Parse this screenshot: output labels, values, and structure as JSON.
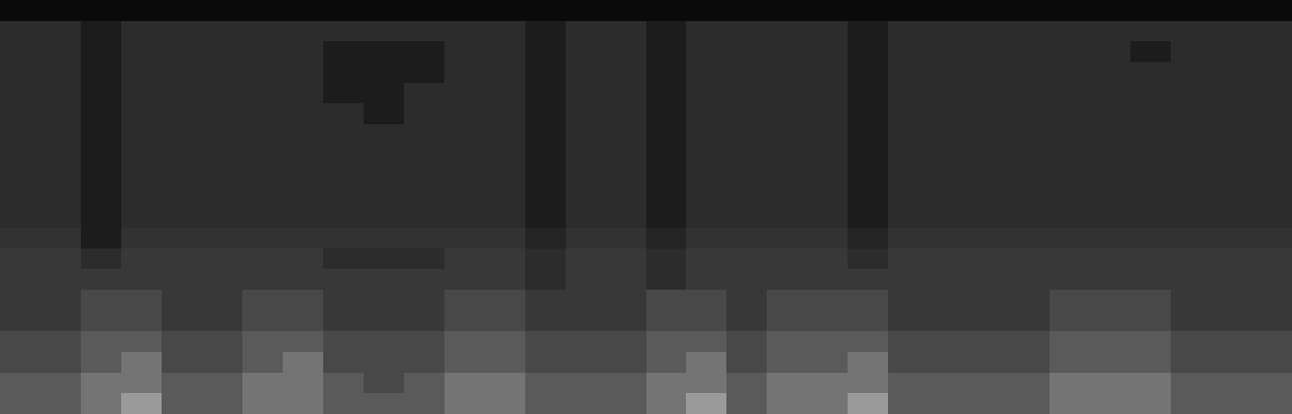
{
  "chart_data": {
    "type": "heatmap",
    "tick_labels": false,
    "zlim": [
      0,
      10
    ],
    "cells": [
      [
        1,
        1,
        1,
        1,
        1,
        1,
        1,
        1,
        1,
        1,
        1,
        1,
        1,
        1,
        1,
        1,
        1,
        1,
        1,
        1,
        1,
        1,
        1,
        1,
        1,
        1,
        1,
        1,
        1,
        1,
        1,
        1
      ],
      [
        3,
        3,
        2,
        3,
        3,
        3,
        3,
        3,
        3,
        3,
        3,
        3,
        3,
        2,
        3,
        3,
        2,
        3,
        3,
        3,
        3,
        2,
        3,
        3,
        3,
        3,
        3,
        3,
        3,
        3,
        3,
        3
      ],
      [
        3,
        3,
        2,
        3,
        3,
        3,
        3,
        3,
        2,
        2,
        2,
        3,
        3,
        2,
        3,
        3,
        2,
        3,
        3,
        3,
        3,
        2,
        3,
        3,
        3,
        3,
        3,
        3,
        2,
        3,
        3,
        3
      ],
      [
        3,
        3,
        2,
        3,
        3,
        3,
        3,
        3,
        2,
        2,
        2,
        3,
        3,
        2,
        3,
        3,
        2,
        3,
        3,
        3,
        3,
        2,
        3,
        3,
        3,
        3,
        3,
        3,
        3,
        3,
        3,
        3
      ],
      [
        3,
        3,
        2,
        3,
        3,
        3,
        3,
        3,
        2,
        2,
        3,
        3,
        3,
        2,
        3,
        3,
        2,
        3,
        3,
        3,
        3,
        2,
        3,
        3,
        3,
        3,
        3,
        3,
        3,
        3,
        3,
        3
      ],
      [
        3,
        3,
        2,
        3,
        3,
        3,
        3,
        3,
        3,
        2,
        3,
        3,
        3,
        2,
        3,
        3,
        2,
        3,
        3,
        3,
        3,
        2,
        3,
        3,
        3,
        3,
        3,
        3,
        3,
        3,
        3,
        3
      ],
      [
        3,
        3,
        2,
        3,
        3,
        3,
        3,
        3,
        3,
        3,
        3,
        3,
        3,
        2,
        3,
        3,
        2,
        3,
        3,
        3,
        3,
        2,
        3,
        3,
        3,
        3,
        3,
        3,
        3,
        3,
        3,
        3
      ],
      [
        3,
        3,
        2,
        3,
        3,
        3,
        3,
        3,
        3,
        3,
        3,
        3,
        3,
        2,
        3,
        3,
        2,
        3,
        3,
        3,
        3,
        2,
        3,
        3,
        3,
        3,
        3,
        3,
        3,
        3,
        3,
        3
      ],
      [
        3,
        3,
        2,
        3,
        3,
        3,
        3,
        3,
        3,
        3,
        3,
        3,
        3,
        2,
        3,
        3,
        2,
        3,
        3,
        3,
        3,
        2,
        3,
        3,
        3,
        3,
        3,
        3,
        3,
        3,
        3,
        3
      ],
      [
        3,
        3,
        2,
        3,
        3,
        3,
        3,
        3,
        3,
        3,
        3,
        3,
        3,
        2,
        3,
        3,
        2,
        3,
        3,
        3,
        3,
        2,
        3,
        3,
        3,
        3,
        3,
        3,
        3,
        3,
        3,
        3
      ],
      [
        3,
        3,
        2,
        3,
        3,
        3,
        3,
        3,
        3,
        3,
        3,
        3,
        3,
        2,
        3,
        3,
        2,
        3,
        3,
        3,
        3,
        2,
        3,
        3,
        3,
        3,
        3,
        3,
        3,
        3,
        3,
        3
      ],
      [
        3.5,
        3.5,
        2,
        3.5,
        3.5,
        3.5,
        3.5,
        3.5,
        3.5,
        3.5,
        3.5,
        3.5,
        3.5,
        2.5,
        3.5,
        3.5,
        2.5,
        3.5,
        3.5,
        3.5,
        3.5,
        2.5,
        3.5,
        3.5,
        3.5,
        3.5,
        3.5,
        3.5,
        3.5,
        3.5,
        3.5,
        3.5
      ],
      [
        4,
        4,
        3,
        4,
        4,
        4,
        4,
        4,
        3,
        3,
        3,
        4,
        4,
        3,
        4,
        4,
        3,
        4,
        4,
        4,
        4,
        3,
        4,
        4,
        4,
        4,
        4,
        4,
        4,
        4,
        4,
        4
      ],
      [
        4,
        4,
        4,
        4,
        4,
        4,
        4,
        4,
        4,
        4,
        4,
        4,
        4,
        3,
        4,
        4,
        3,
        4,
        4,
        4,
        4,
        4,
        4,
        4,
        4,
        4,
        4,
        4,
        4,
        4,
        4,
        4
      ],
      [
        4,
        4,
        5,
        5,
        4,
        4,
        5,
        5,
        4,
        4,
        4,
        5,
        5,
        4,
        4,
        4,
        5,
        5,
        4,
        5,
        5,
        5,
        4,
        4,
        4,
        4,
        5,
        5,
        5,
        4,
        4,
        4
      ],
      [
        4,
        4,
        5,
        5,
        4,
        4,
        5,
        5,
        4,
        4,
        4,
        5,
        5,
        4,
        4,
        4,
        5,
        5,
        4,
        5,
        5,
        5,
        4,
        4,
        4,
        4,
        5,
        5,
        5,
        4,
        4,
        4
      ],
      [
        5,
        5,
        6,
        6,
        5,
        5,
        6,
        6,
        5,
        5,
        5,
        6,
        6,
        5,
        5,
        5,
        6,
        6,
        5,
        6,
        6,
        6,
        5,
        5,
        5,
        5,
        6,
        6,
        6,
        5,
        5,
        5
      ],
      [
        5,
        5,
        6,
        7,
        5,
        5,
        6,
        7,
        5,
        5,
        5,
        6,
        6,
        5,
        5,
        5,
        6,
        7,
        5,
        6,
        6,
        7,
        5,
        5,
        5,
        5,
        6,
        6,
        6,
        5,
        5,
        5
      ],
      [
        6,
        6,
        7,
        7,
        6,
        6,
        7,
        7,
        6,
        5,
        6,
        7,
        7,
        6,
        6,
        6,
        7,
        7,
        6,
        7,
        7,
        7,
        6,
        6,
        6,
        6,
        7,
        7,
        7,
        6,
        6,
        6
      ],
      [
        6,
        6,
        7,
        8,
        6,
        6,
        7,
        7,
        6,
        6,
        6,
        7,
        7,
        6,
        6,
        6,
        7,
        8,
        6,
        7,
        7,
        8,
        6,
        6,
        6,
        6,
        7,
        7,
        7,
        6,
        6,
        6
      ]
    ]
  }
}
